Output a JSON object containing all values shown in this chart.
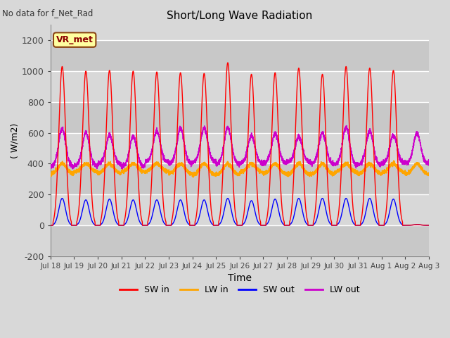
{
  "title": "Short/Long Wave Radiation",
  "xlabel": "Time",
  "ylabel": "( W/m2)",
  "top_left_text": "No data for f_Net_Rad",
  "legend_label": "VR_met",
  "ylim": [
    -200,
    1300
  ],
  "yticks": [
    -200,
    0,
    200,
    400,
    600,
    800,
    1000,
    1200
  ],
  "num_days": 16,
  "colors": {
    "SW_in": "#ff0000",
    "LW_in": "#ffa500",
    "SW_out": "#0000ff",
    "LW_out": "#cc00cc"
  },
  "background_color": "#d8d8d8",
  "plot_bg_color": "#d8d8d8",
  "grid_color": "#ffffff",
  "sw_in_peaks": [
    1030,
    1000,
    1005,
    1000,
    995,
    990,
    985,
    1055,
    980,
    990,
    1020,
    980,
    1030,
    1020,
    1005,
    5
  ],
  "sw_out_peaks": [
    175,
    165,
    170,
    165,
    165,
    165,
    165,
    175,
    160,
    170,
    175,
    175,
    175,
    175,
    170,
    5
  ],
  "lw_in_base": 330,
  "lw_in_day_peak": 400,
  "lw_out_base": 390,
  "lw_out_day_peak": 600,
  "sw_bell_sigma": 0.14,
  "lw_out_sigma": 0.15
}
